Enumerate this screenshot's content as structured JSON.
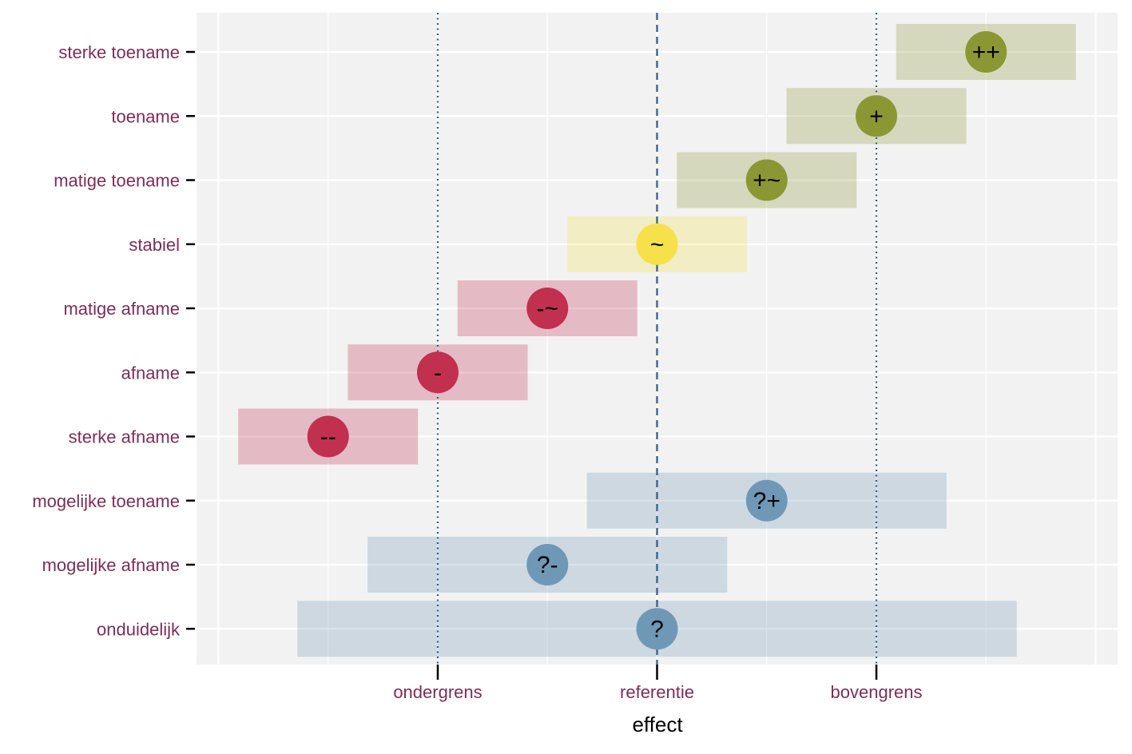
{
  "chart_data": {
    "type": "interval-dot",
    "xlabel": "effect",
    "x_ticks": [
      {
        "label": "ondergrens",
        "value": -1
      },
      {
        "label": "referentie",
        "value": 0
      },
      {
        "label": "bovengrens",
        "value": 1
      }
    ],
    "reference_lines": [
      {
        "value": -1,
        "style": "dotted"
      },
      {
        "value": 0,
        "style": "dashed"
      },
      {
        "value": 1,
        "style": "dotted"
      }
    ],
    "xlim": [
      -2.1,
      2.1
    ],
    "grid": true,
    "colors": {
      "increase": "#8b9733",
      "stable": "#f6e14a",
      "decrease": "#c1304f",
      "uncertain": "#6f98b7",
      "reference_line": "#2f5a86",
      "panel_background": "#f2f2f2",
      "label_text": "#7a2e57"
    },
    "rows": [
      {
        "label": "sterke toename",
        "symbol": "++",
        "estimate": 1.5,
        "lower": 1.09,
        "upper": 1.91,
        "group": "increase"
      },
      {
        "label": "toename",
        "symbol": "+",
        "estimate": 1.0,
        "lower": 0.59,
        "upper": 1.41,
        "group": "increase"
      },
      {
        "label": "matige toename",
        "symbol": "+~",
        "estimate": 0.5,
        "lower": 0.09,
        "upper": 0.91,
        "group": "increase"
      },
      {
        "label": "stabiel",
        "symbol": "~",
        "estimate": 0.0,
        "lower": -0.41,
        "upper": 0.41,
        "group": "stable"
      },
      {
        "label": "matige afname",
        "symbol": "-~",
        "estimate": -0.5,
        "lower": -0.91,
        "upper": -0.09,
        "group": "decrease"
      },
      {
        "label": "afname",
        "symbol": "-",
        "estimate": -1.0,
        "lower": -1.41,
        "upper": -0.59,
        "group": "decrease"
      },
      {
        "label": "sterke afname",
        "symbol": "--",
        "estimate": -1.5,
        "lower": -1.91,
        "upper": -1.09,
        "group": "decrease"
      },
      {
        "label": "mogelijke toename",
        "symbol": "?+",
        "estimate": 0.5,
        "lower": -0.32,
        "upper": 1.32,
        "group": "uncertain"
      },
      {
        "label": "mogelijke afname",
        "symbol": "?-",
        "estimate": -0.5,
        "lower": -1.32,
        "upper": 0.32,
        "group": "uncertain"
      },
      {
        "label": "onduidelijk",
        "symbol": "?",
        "estimate": 0.0,
        "lower": -1.64,
        "upper": 1.64,
        "group": "uncertain"
      }
    ]
  }
}
